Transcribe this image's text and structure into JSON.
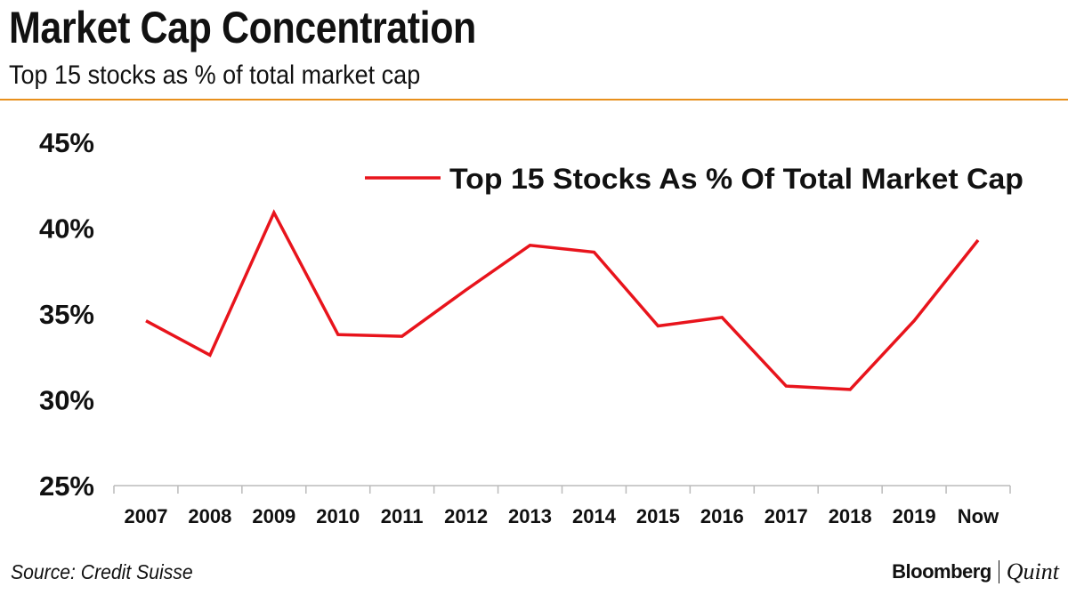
{
  "title": "Market Cap Concentration",
  "subtitle": "Top 15 stocks as % of total market cap",
  "source": "Source: Credit Suisse",
  "brand": {
    "main": "Bloomberg",
    "sub": "Quint"
  },
  "colors": {
    "line": "#e8141c",
    "rule": "#e8901c"
  },
  "chart_data": {
    "type": "line",
    "categories": [
      "2007",
      "2008",
      "2009",
      "2010",
      "2011",
      "2012",
      "2013",
      "2014",
      "2015",
      "2016",
      "2017",
      "2018",
      "2019",
      "Now"
    ],
    "series": [
      {
        "name": "Top 15 Stocks As % Of Total Market Cap",
        "values": [
          34.6,
          32.6,
          40.9,
          33.8,
          33.7,
          36.4,
          39.0,
          38.6,
          34.3,
          34.8,
          30.8,
          30.6,
          34.6,
          39.3
        ]
      }
    ],
    "yticks": [
      "45%",
      "40%",
      "35%",
      "30%",
      "25%"
    ],
    "ylim": [
      25,
      45
    ],
    "legend_position": "top-right",
    "grid": false
  }
}
